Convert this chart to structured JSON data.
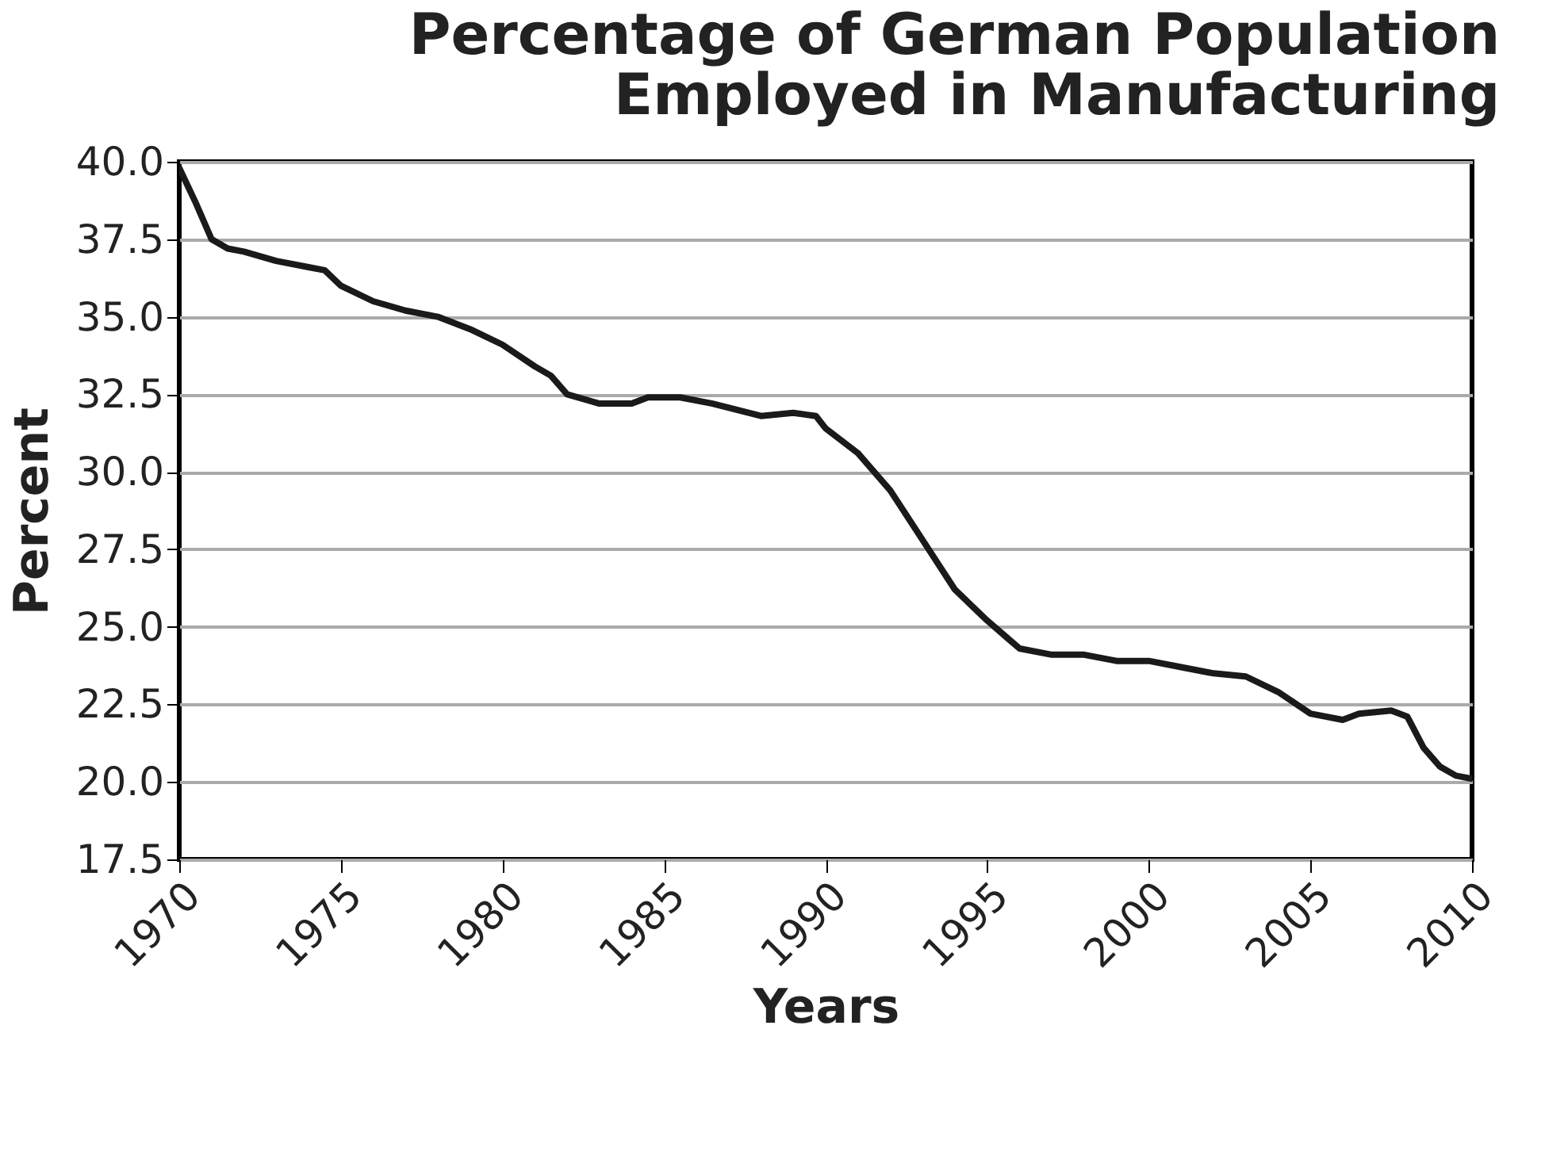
{
  "chart_data": {
    "type": "line",
    "title": "Percentage of German Population\nEmployed in Manufacturing",
    "xlabel": "Years",
    "ylabel": "Percent",
    "x": [
      1970,
      1970.5,
      1971,
      1971.5,
      1972,
      1973,
      1974,
      1974.5,
      1975,
      1976,
      1977,
      1978,
      1979,
      1980,
      1981,
      1981.5,
      1982,
      1983,
      1984,
      1984.5,
      1985.5,
      1986.5,
      1988,
      1989,
      1989.7,
      1990,
      1991,
      1992,
      1993,
      1994,
      1995,
      1996,
      1997,
      1998,
      1999,
      2000,
      2001,
      2002,
      2003,
      2004,
      2005,
      2006,
      2006.5,
      2007.5,
      2008,
      2008.5,
      2009,
      2009.5,
      2010
    ],
    "series": [
      {
        "color": "#1a1a1a",
        "values": [
          39.8,
          38.7,
          37.5,
          37.2,
          37.1,
          36.8,
          36.6,
          36.5,
          36.0,
          35.5,
          35.2,
          35.0,
          34.6,
          34.1,
          33.4,
          33.1,
          32.5,
          32.2,
          32.2,
          32.4,
          32.4,
          32.2,
          31.8,
          31.9,
          31.8,
          31.4,
          30.6,
          29.4,
          27.8,
          26.2,
          25.2,
          24.3,
          24.1,
          24.1,
          23.9,
          23.9,
          23.7,
          23.5,
          23.4,
          22.9,
          22.2,
          22.0,
          22.2,
          22.3,
          22.1,
          21.1,
          20.5,
          20.2,
          20.1
        ]
      }
    ],
    "xlim": [
      1970,
      2010
    ],
    "xticks": [
      1970,
      1975,
      1980,
      1985,
      1990,
      1995,
      2000,
      2005,
      2010
    ],
    "ylim": [
      17.5,
      40
    ],
    "yticks": [
      17.5,
      {
        "value": 20,
        "label": "20.0"
      },
      22.5,
      {
        "value": 25,
        "label": "25.0"
      },
      27.5,
      {
        "value": 30,
        "label": "30.0"
      },
      32.5,
      {
        "value": 35,
        "label": "35.0"
      },
      37.5,
      {
        "value": 40,
        "label": "40.0"
      }
    ],
    "grid": "y",
    "marker": "none",
    "line_style": "solid"
  }
}
